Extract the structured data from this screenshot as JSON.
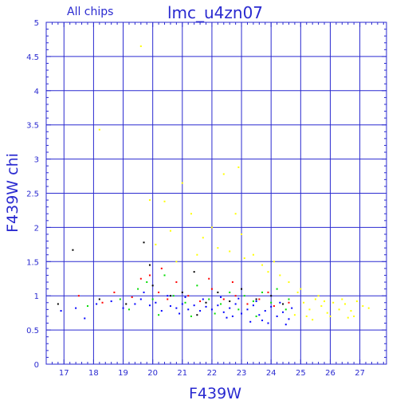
{
  "chart_data": {
    "type": "scatter",
    "title": "lmc_u4zn07",
    "subtitle": "All chips",
    "xlabel": "F439W",
    "ylabel": "F439W chi",
    "xlim": [
      16.4,
      27.9
    ],
    "ylim": [
      0,
      5
    ],
    "x_ticks": [
      "17",
      "18",
      "19",
      "20",
      "21",
      "22",
      "23",
      "24",
      "25",
      "26",
      "27"
    ],
    "y_ticks": [
      "0",
      "0.5",
      "1",
      "1.5",
      "2",
      "2.5",
      "3",
      "3.5",
      "4",
      "4.5",
      "5"
    ],
    "grid": true,
    "point_colors": [
      "#000000",
      "#ff0000",
      "#00dd00",
      "#0000ff",
      "#ffff00"
    ],
    "series": [
      {
        "color": "#0000ff",
        "points": [
          [
            16.9,
            0.78
          ],
          [
            17.4,
            0.82
          ],
          [
            17.7,
            0.67
          ],
          [
            18.1,
            0.88
          ],
          [
            18.6,
            0.92
          ],
          [
            19.0,
            0.82
          ],
          [
            19.4,
            0.88
          ],
          [
            19.6,
            0.95
          ],
          [
            19.9,
            0.86
          ],
          [
            20.1,
            0.9
          ],
          [
            20.3,
            0.78
          ],
          [
            20.6,
            0.85
          ],
          [
            20.8,
            0.82
          ],
          [
            21.0,
            0.88
          ],
          [
            21.2,
            0.8
          ],
          [
            21.4,
            0.86
          ],
          [
            21.6,
            0.78
          ],
          [
            21.8,
            0.84
          ],
          [
            22.0,
            0.8
          ],
          [
            22.2,
            0.86
          ],
          [
            22.4,
            0.76
          ],
          [
            22.6,
            0.82
          ],
          [
            22.8,
            0.88
          ],
          [
            23.0,
            0.74
          ],
          [
            23.2,
            0.8
          ],
          [
            23.4,
            0.86
          ],
          [
            23.6,
            0.72
          ],
          [
            23.8,
            0.78
          ],
          [
            24.0,
            0.84
          ],
          [
            24.2,
            0.7
          ],
          [
            24.4,
            0.76
          ],
          [
            24.6,
            0.66
          ],
          [
            24.7,
            0.82
          ],
          [
            23.9,
            0.6
          ],
          [
            23.5,
            0.92
          ],
          [
            22.9,
            0.96
          ],
          [
            22.3,
            0.98
          ],
          [
            21.7,
            0.95
          ],
          [
            21.1,
            0.98
          ],
          [
            20.5,
            1.0
          ],
          [
            19.7,
            1.05
          ],
          [
            20.9,
            0.74
          ],
          [
            22.5,
            0.68
          ],
          [
            23.7,
            0.64
          ],
          [
            24.3,
            0.9
          ],
          [
            24.5,
            0.58
          ],
          [
            23.3,
            0.62
          ],
          [
            22.7,
            0.7
          ]
        ]
      },
      {
        "color": "#00dd00",
        "points": [
          [
            17.8,
            0.85
          ],
          [
            18.9,
            0.95
          ],
          [
            19.5,
            1.1
          ],
          [
            19.8,
            1.2
          ],
          [
            20.0,
            0.95
          ],
          [
            20.4,
            1.3
          ],
          [
            20.7,
            1.0
          ],
          [
            21.1,
            0.9
          ],
          [
            21.5,
            1.15
          ],
          [
            21.9,
            0.95
          ],
          [
            22.3,
            0.88
          ],
          [
            22.6,
            1.05
          ],
          [
            22.9,
            0.8
          ],
          [
            23.1,
            1.0
          ],
          [
            23.4,
            0.92
          ],
          [
            23.7,
            1.05
          ],
          [
            24.0,
            0.9
          ],
          [
            24.2,
            1.1
          ],
          [
            24.5,
            0.8
          ],
          [
            20.2,
            0.72
          ],
          [
            21.3,
            0.7
          ],
          [
            22.1,
            0.74
          ],
          [
            23.5,
            0.7
          ],
          [
            24.6,
            0.95
          ],
          [
            19.2,
            0.8
          ]
        ]
      },
      {
        "color": "#ff0000",
        "points": [
          [
            17.5,
            1.0
          ],
          [
            18.3,
            0.9
          ],
          [
            18.7,
            1.05
          ],
          [
            19.3,
            0.98
          ],
          [
            19.6,
            1.25
          ],
          [
            19.9,
            1.3
          ],
          [
            20.2,
            1.05
          ],
          [
            20.5,
            0.95
          ],
          [
            20.8,
            1.2
          ],
          [
            21.2,
            1.0
          ],
          [
            21.6,
            0.92
          ],
          [
            22.0,
            1.1
          ],
          [
            22.4,
            0.95
          ],
          [
            22.8,
            1.0
          ],
          [
            23.2,
            0.88
          ],
          [
            23.6,
            0.95
          ],
          [
            24.1,
            0.85
          ],
          [
            24.6,
            0.9
          ],
          [
            21.9,
            1.25
          ],
          [
            20.3,
            1.4
          ],
          [
            22.7,
            1.2
          ],
          [
            23.9,
            1.05
          ]
        ]
      },
      {
        "color": "#000000",
        "points": [
          [
            16.8,
            0.88
          ],
          [
            17.3,
            1.67
          ],
          [
            18.2,
            0.95
          ],
          [
            19.1,
            0.88
          ],
          [
            19.7,
            1.78
          ],
          [
            20.0,
            1.15
          ],
          [
            20.6,
            1.0
          ],
          [
            21.0,
            1.05
          ],
          [
            21.4,
            1.35
          ],
          [
            21.8,
            0.9
          ],
          [
            22.2,
            1.05
          ],
          [
            22.6,
            0.92
          ],
          [
            23.0,
            1.1
          ],
          [
            23.5,
            0.95
          ],
          [
            24.0,
            1.0
          ],
          [
            24.4,
            0.88
          ],
          [
            19.9,
            1.45
          ],
          [
            21.5,
            0.72
          ]
        ]
      },
      {
        "color": "#ffff00",
        "points": [
          [
            19.6,
            4.65
          ],
          [
            18.2,
            3.43
          ],
          [
            19.9,
            2.4
          ],
          [
            20.4,
            2.38
          ],
          [
            20.6,
            1.95
          ],
          [
            21.0,
            2.65
          ],
          [
            21.3,
            2.2
          ],
          [
            21.7,
            1.85
          ],
          [
            22.0,
            2.0
          ],
          [
            22.4,
            2.78
          ],
          [
            22.6,
            1.65
          ],
          [
            22.8,
            2.2
          ],
          [
            22.9,
            2.88
          ],
          [
            23.1,
            1.55
          ],
          [
            23.4,
            1.6
          ],
          [
            23.7,
            1.45
          ],
          [
            23.9,
            1.35
          ],
          [
            24.1,
            1.5
          ],
          [
            24.3,
            1.3
          ],
          [
            24.6,
            1.2
          ],
          [
            24.9,
            1.05
          ],
          [
            25.1,
            0.9
          ],
          [
            25.3,
            0.8
          ],
          [
            25.5,
            0.95
          ],
          [
            25.7,
            0.85
          ],
          [
            25.9,
            0.75
          ],
          [
            26.1,
            0.9
          ],
          [
            26.3,
            0.8
          ],
          [
            26.5,
            0.88
          ],
          [
            26.7,
            0.78
          ],
          [
            26.9,
            0.92
          ],
          [
            27.1,
            0.85
          ],
          [
            27.3,
            0.82
          ],
          [
            25.2,
            0.7
          ],
          [
            25.6,
            1.0
          ],
          [
            26.0,
            0.7
          ],
          [
            26.4,
            0.95
          ],
          [
            26.8,
            0.7
          ],
          [
            25.0,
            1.1
          ],
          [
            25.4,
            0.65
          ],
          [
            23.0,
            1.9
          ],
          [
            22.2,
            1.7
          ],
          [
            21.5,
            1.6
          ],
          [
            20.8,
            1.5
          ],
          [
            20.1,
            1.75
          ],
          [
            24.8,
            0.72
          ],
          [
            25.8,
            0.92
          ],
          [
            26.6,
            0.68
          ]
        ]
      }
    ]
  }
}
